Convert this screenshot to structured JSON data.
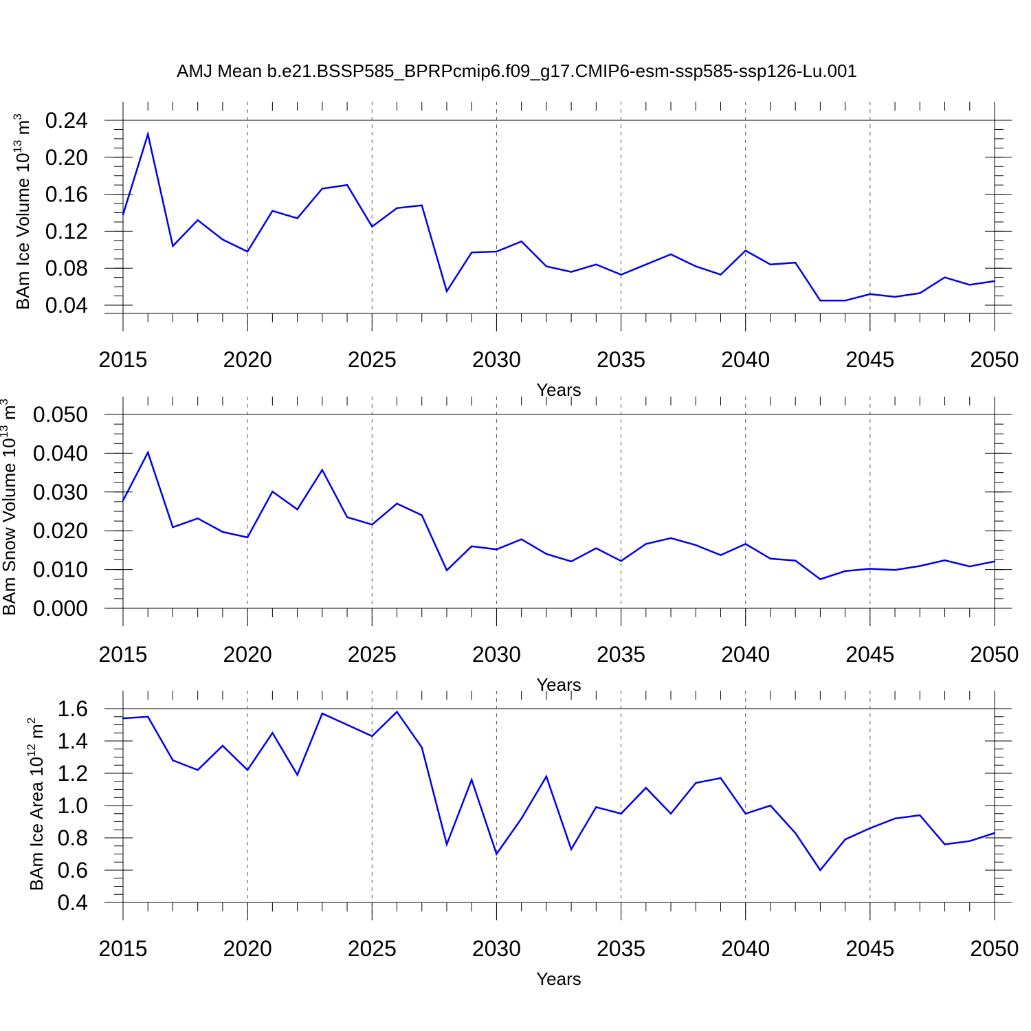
{
  "title": "AMJ Mean b.e21.BSSP585_BPRPcmip6.f09_g17.CMIP6-esm-ssp585-ssp126-Lu.001",
  "chart_data": [
    {
      "type": "line",
      "xlabel": "Years",
      "ylabel": {
        "text": "BAm Ice Volume 10",
        "sup1": "13",
        "mid": " m",
        "sup2": "3"
      },
      "xlim": [
        2015,
        2050
      ],
      "ylim": [
        0.03,
        0.25
      ],
      "xticks": [
        2015,
        2020,
        2025,
        2030,
        2035,
        2040,
        2045,
        2050
      ],
      "yticks": [
        0.04,
        0.08,
        0.12,
        0.16,
        0.2,
        0.24
      ],
      "ytick_labels": [
        "0.04",
        "0.08",
        "0.12",
        "0.16",
        "0.20",
        "0.24"
      ],
      "grid": "vertical dashed at major x ticks",
      "line_color": "#0000ee",
      "x": [
        2015,
        2016,
        2017,
        2018,
        2019,
        2020,
        2021,
        2022,
        2023,
        2024,
        2025,
        2026,
        2027,
        2028,
        2029,
        2030,
        2031,
        2032,
        2033,
        2034,
        2035,
        2036,
        2037,
        2038,
        2039,
        2040,
        2041,
        2042,
        2043,
        2044,
        2045,
        2046,
        2047,
        2048,
        2049,
        2050
      ],
      "values": [
        0.138,
        0.225,
        0.104,
        0.132,
        0.111,
        0.098,
        0.142,
        0.134,
        0.166,
        0.17,
        0.125,
        0.145,
        0.148,
        0.055,
        0.097,
        0.098,
        0.109,
        0.082,
        0.076,
        0.084,
        0.073,
        0.084,
        0.095,
        0.082,
        0.073,
        0.099,
        0.084,
        0.086,
        0.045,
        0.045,
        0.052,
        0.049,
        0.053,
        0.07,
        0.062,
        0.066
      ]
    },
    {
      "type": "line",
      "xlabel": "Years",
      "ylabel": {
        "text": "BAm Snow Volume 10",
        "sup1": "13",
        "mid": " m",
        "sup2": "3"
      },
      "xlim": [
        2015,
        2050
      ],
      "ylim": [
        0.0,
        0.05
      ],
      "xticks": [
        2015,
        2020,
        2025,
        2030,
        2035,
        2040,
        2045,
        2050
      ],
      "yticks": [
        0.0,
        0.01,
        0.02,
        0.03,
        0.04,
        0.05
      ],
      "ytick_labels": [
        "0.000",
        "0.010",
        "0.020",
        "0.030",
        "0.040",
        "0.050"
      ],
      "grid": "vertical dashed at major x ticks",
      "line_color": "#0000ee",
      "x": [
        2015,
        2016,
        2017,
        2018,
        2019,
        2020,
        2021,
        2022,
        2023,
        2024,
        2025,
        2026,
        2027,
        2028,
        2029,
        2030,
        2031,
        2032,
        2033,
        2034,
        2035,
        2036,
        2037,
        2038,
        2039,
        2040,
        2041,
        2042,
        2043,
        2044,
        2045,
        2046,
        2047,
        2048,
        2049,
        2050
      ],
      "values": [
        0.0278,
        0.0402,
        0.0209,
        0.0232,
        0.0197,
        0.0183,
        0.0301,
        0.0255,
        0.0357,
        0.0235,
        0.0216,
        0.027,
        0.024,
        0.0098,
        0.016,
        0.0152,
        0.0178,
        0.014,
        0.0121,
        0.0155,
        0.0122,
        0.0166,
        0.0181,
        0.0163,
        0.0137,
        0.0166,
        0.0128,
        0.0123,
        0.0075,
        0.0096,
        0.0102,
        0.0099,
        0.0109,
        0.0124,
        0.0108,
        0.0121
      ]
    },
    {
      "type": "line",
      "xlabel": "Years",
      "ylabel": {
        "text": "BAm Ice Area 10",
        "sup1": "12",
        "mid": " m",
        "sup2": "2"
      },
      "xlim": [
        2015,
        2050
      ],
      "ylim": [
        0.4,
        1.6
      ],
      "xticks": [
        2015,
        2020,
        2025,
        2030,
        2035,
        2040,
        2045,
        2050
      ],
      "yticks": [
        0.4,
        0.6,
        0.8,
        1.0,
        1.2,
        1.4,
        1.6
      ],
      "ytick_labels": [
        "0.4",
        "0.6",
        "0.8",
        "1.0",
        "1.2",
        "1.4",
        "1.6"
      ],
      "grid": "vertical dashed at major x ticks",
      "line_color": "#0000ee",
      "x": [
        2015,
        2016,
        2017,
        2018,
        2019,
        2020,
        2021,
        2022,
        2023,
        2024,
        2025,
        2026,
        2027,
        2028,
        2029,
        2030,
        2031,
        2032,
        2033,
        2034,
        2035,
        2036,
        2037,
        2038,
        2039,
        2040,
        2041,
        2042,
        2043,
        2044,
        2045,
        2046,
        2047,
        2048,
        2049,
        2050
      ],
      "values": [
        1.54,
        1.55,
        1.28,
        1.22,
        1.37,
        1.22,
        1.45,
        1.19,
        1.57,
        1.5,
        1.43,
        1.58,
        1.36,
        0.76,
        1.16,
        0.7,
        0.92,
        1.18,
        0.73,
        0.99,
        0.95,
        1.11,
        0.95,
        1.14,
        1.17,
        0.95,
        1.0,
        0.83,
        0.6,
        0.79,
        0.86,
        0.92,
        0.94,
        0.76,
        0.78,
        0.83
      ]
    }
  ]
}
